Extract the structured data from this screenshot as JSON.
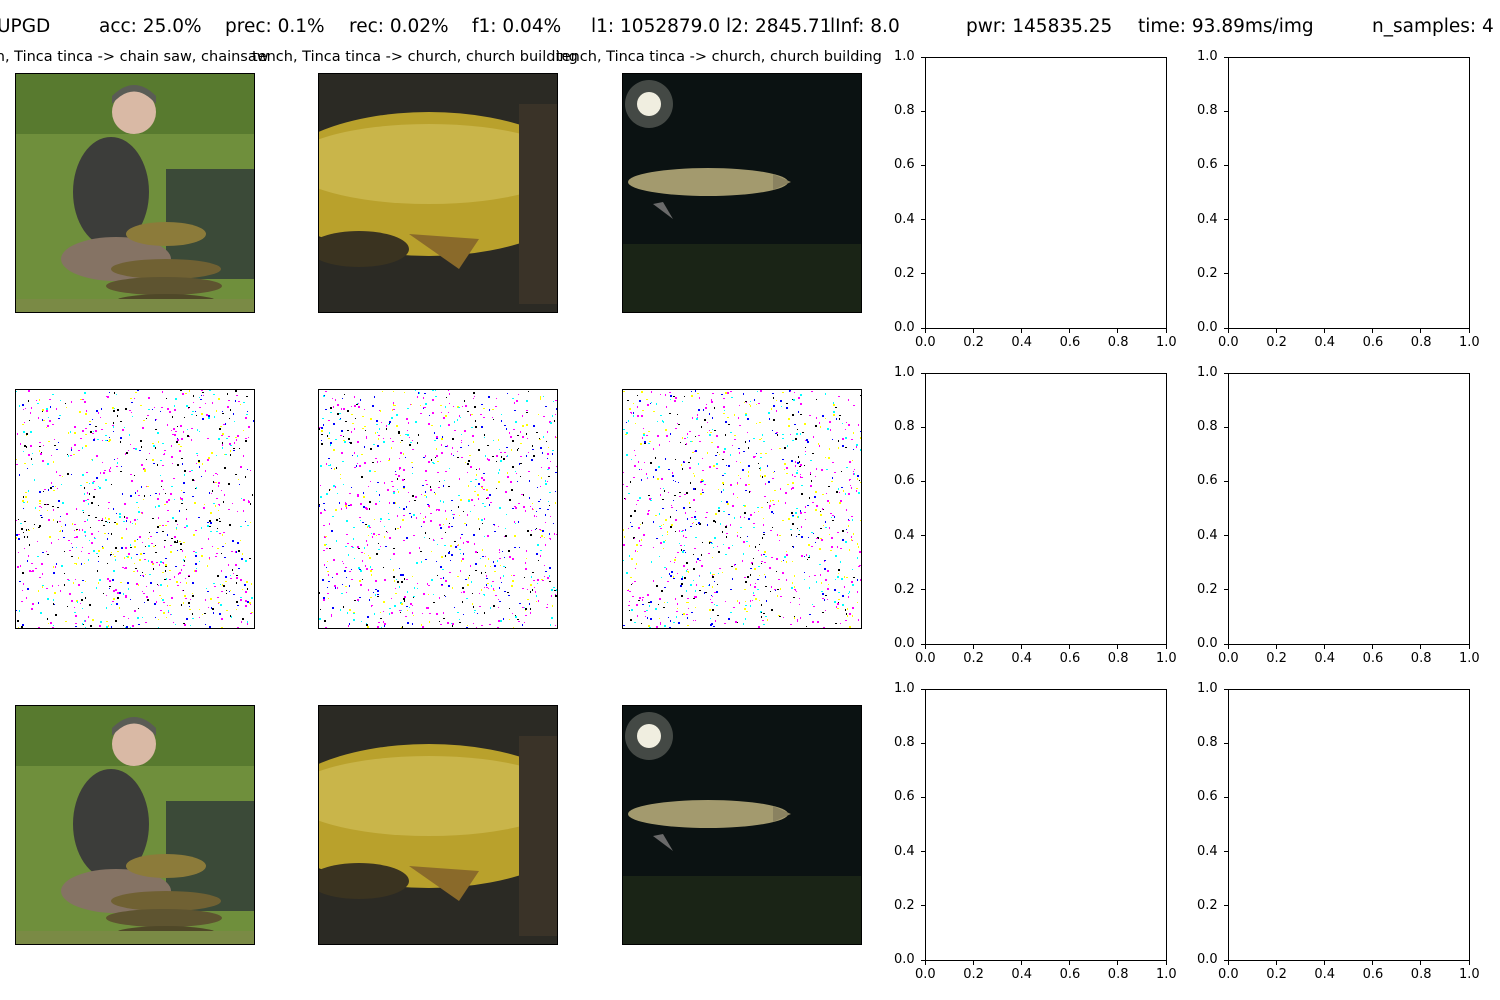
{
  "header": {
    "method": "UPGD",
    "accuracy": "acc: 25.0%",
    "precision": "prec: 0.1%",
    "recall": "rec: 0.02%",
    "f1": "f1: 0.04%",
    "norms": "l1: 1052879.0 l2: 2845.71",
    "linf": "lInf: 8.0",
    "power": "pwr: 145835.25",
    "time": "time: 93.89ms/img",
    "samples": "n_samples: 4"
  },
  "columns": [
    {
      "title": "tench, Tinca tinca -> chain saw, chainsaw"
    },
    {
      "title": "tench, Tinca tinca -> church, church building"
    },
    {
      "title": "tench, Tinca tinca -> church, church building"
    }
  ],
  "colors": {
    "grass": "#6f8f3c",
    "fish_gold": "#b9a12c",
    "net_dark": "#2b2a24",
    "night": "#0b1212",
    "pike": "#a39a6e",
    "noise_magenta": "#ff00ff",
    "noise_cyan": "#00ffff",
    "noise_yellow": "#ffff00"
  },
  "chart_data": [
    {
      "type": "scatter",
      "x": [],
      "y": [],
      "xlim": [
        0.0,
        1.0
      ],
      "ylim": [
        0.0,
        1.0
      ],
      "xticks": [
        "0.0",
        "0.2",
        "0.4",
        "0.6",
        "0.8",
        "1.0"
      ],
      "yticks": [
        "0.0",
        "0.2",
        "0.4",
        "0.6",
        "0.8",
        "1.0"
      ]
    }
  ]
}
